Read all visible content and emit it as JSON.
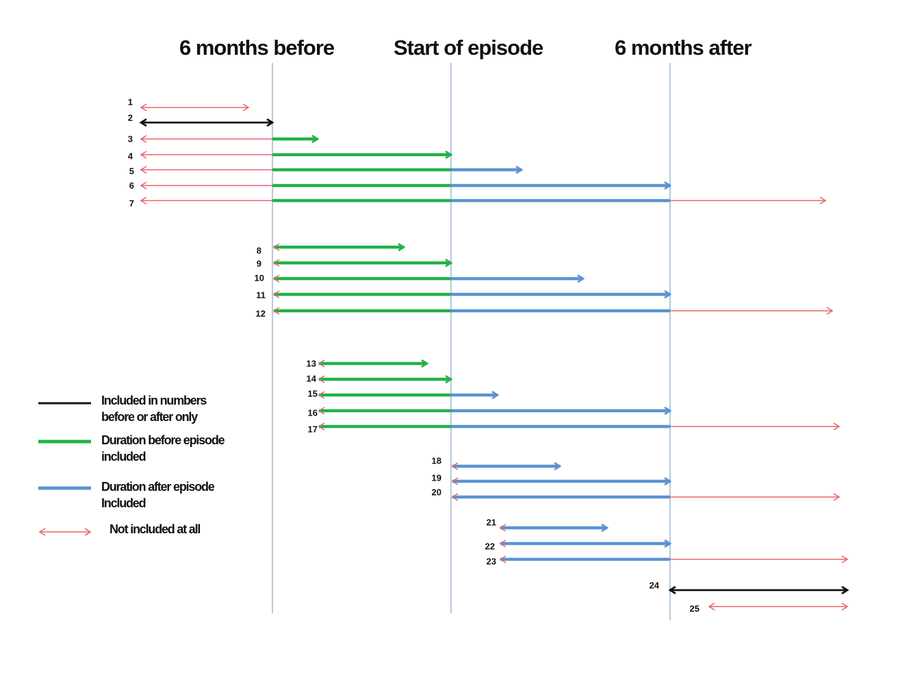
{
  "headers": {
    "six_months_before": "6 months before",
    "start_of_episode": "Start of episode",
    "six_months_after": "6 months after"
  },
  "legend": [
    {
      "kind": "black",
      "label_lines": [
        "Included in numbers",
        "before or after only"
      ]
    },
    {
      "kind": "green",
      "label_lines": [
        "Duration before episode",
        "included"
      ]
    },
    {
      "kind": "blue",
      "label_lines": [
        "Duration after episode",
        "Included"
      ]
    },
    {
      "kind": "red",
      "label_lines": [
        "Not included at all"
      ]
    }
  ],
  "colors": {
    "black": "#111111",
    "green": "#20b24a",
    "blue": "#5b93d3",
    "red": "#e8646c",
    "reference_line": "#9db8d2"
  },
  "rows": [
    {
      "label": "1",
      "start": "far-before",
      "end": "between-before-start",
      "type": "not-included"
    },
    {
      "label": "2",
      "start": "far-before",
      "end": "6-months-before",
      "type": "before-after-only"
    },
    {
      "label": "3",
      "start": "far-before",
      "end": "between-before-start",
      "type": "before-duration"
    },
    {
      "label": "4",
      "start": "far-before",
      "end": "start-of-episode",
      "type": "before-duration"
    },
    {
      "label": "5",
      "start": "far-before",
      "end": "between-start-after",
      "type": "before-and-after-duration"
    },
    {
      "label": "6",
      "start": "far-before",
      "end": "6-months-after",
      "type": "before-and-after-duration"
    },
    {
      "label": "7",
      "start": "far-before",
      "end": "far-after",
      "type": "before-and-after-duration"
    },
    {
      "label": "8",
      "start": "6-months-before",
      "end": "between-before-start",
      "type": "before-duration"
    },
    {
      "label": "9",
      "start": "6-months-before",
      "end": "start-of-episode",
      "type": "before-duration"
    },
    {
      "label": "10",
      "start": "6-months-before",
      "end": "between-start-after",
      "type": "before-and-after-duration"
    },
    {
      "label": "11",
      "start": "6-months-before",
      "end": "6-months-after",
      "type": "before-and-after-duration"
    },
    {
      "label": "12",
      "start": "6-months-before",
      "end": "far-after",
      "type": "before-and-after-duration"
    },
    {
      "label": "13",
      "start": "between-before-start",
      "end": "between-before-start",
      "type": "before-duration"
    },
    {
      "label": "14",
      "start": "between-before-start",
      "end": "start-of-episode",
      "type": "before-duration"
    },
    {
      "label": "15",
      "start": "between-before-start",
      "end": "between-start-after",
      "type": "before-and-after-duration"
    },
    {
      "label": "16",
      "start": "between-before-start",
      "end": "6-months-after",
      "type": "before-and-after-duration"
    },
    {
      "label": "17",
      "start": "between-before-start",
      "end": "far-after",
      "type": "before-and-after-duration"
    },
    {
      "label": "18",
      "start": "start-of-episode",
      "end": "between-start-after",
      "type": "after-duration"
    },
    {
      "label": "19",
      "start": "start-of-episode",
      "end": "6-months-after",
      "type": "after-duration"
    },
    {
      "label": "20",
      "start": "start-of-episode",
      "end": "far-after",
      "type": "after-duration"
    },
    {
      "label": "21",
      "start": "between-start-after",
      "end": "between-start-after",
      "type": "after-duration"
    },
    {
      "label": "22",
      "start": "between-start-after",
      "end": "6-months-after",
      "type": "after-duration"
    },
    {
      "label": "23",
      "start": "between-start-after",
      "end": "far-after",
      "type": "after-duration"
    },
    {
      "label": "24",
      "start": "6-months-after",
      "end": "far-after",
      "type": "before-after-only"
    },
    {
      "label": "25",
      "start": "far-after",
      "end": "far-after",
      "type": "not-included"
    }
  ]
}
